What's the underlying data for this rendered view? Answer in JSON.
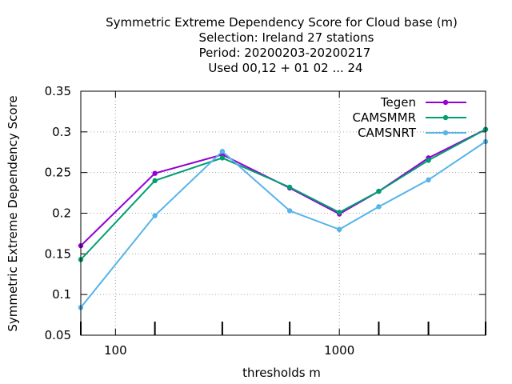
{
  "chart_data": {
    "type": "line",
    "title_lines": [
      "Symmetric Extreme Dependency Score  for Cloud base (m)",
      "Selection: Ireland     27 stations",
      "Period: 20200203-20200217",
      "Used  00,12  + 01 02 ... 24"
    ],
    "xlabel": "thresholds m",
    "ylabel": "Symmetric Extreme Dependency Score",
    "x_scale": "log",
    "xlim": [
      70,
      4500
    ],
    "ylim": [
      0.05,
      0.35
    ],
    "x_ticks": [
      100,
      1000
    ],
    "x_tick_labels": [
      "100",
      "1000"
    ],
    "y_ticks": [
      0.05,
      0.1,
      0.15,
      0.2,
      0.25,
      0.3,
      0.35
    ],
    "y_tick_labels": [
      "0.05",
      "0.1",
      "0.15",
      "0.2",
      "0.25",
      "0.3",
      "0.35"
    ],
    "x_minor_marks": [
      150,
      300,
      600,
      1500,
      2500
    ],
    "grid": true,
    "legend_position": "top-right",
    "x": [
      70,
      150,
      300,
      600,
      1000,
      1500,
      2500,
      4500
    ],
    "series": [
      {
        "name": "Tegen",
        "color": "#9400d3",
        "values": [
          0.16,
          0.249,
          0.272,
          0.231,
          0.199,
          0.227,
          0.268,
          0.303
        ]
      },
      {
        "name": "CAMSMMR",
        "color": "#009e73",
        "values": [
          0.143,
          0.24,
          0.268,
          0.232,
          0.201,
          0.227,
          0.265,
          0.303
        ]
      },
      {
        "name": "CAMSNRT",
        "color": "#56b4e9",
        "values": [
          0.084,
          0.197,
          0.276,
          0.203,
          0.18,
          0.208,
          0.241,
          0.288
        ]
      }
    ]
  }
}
